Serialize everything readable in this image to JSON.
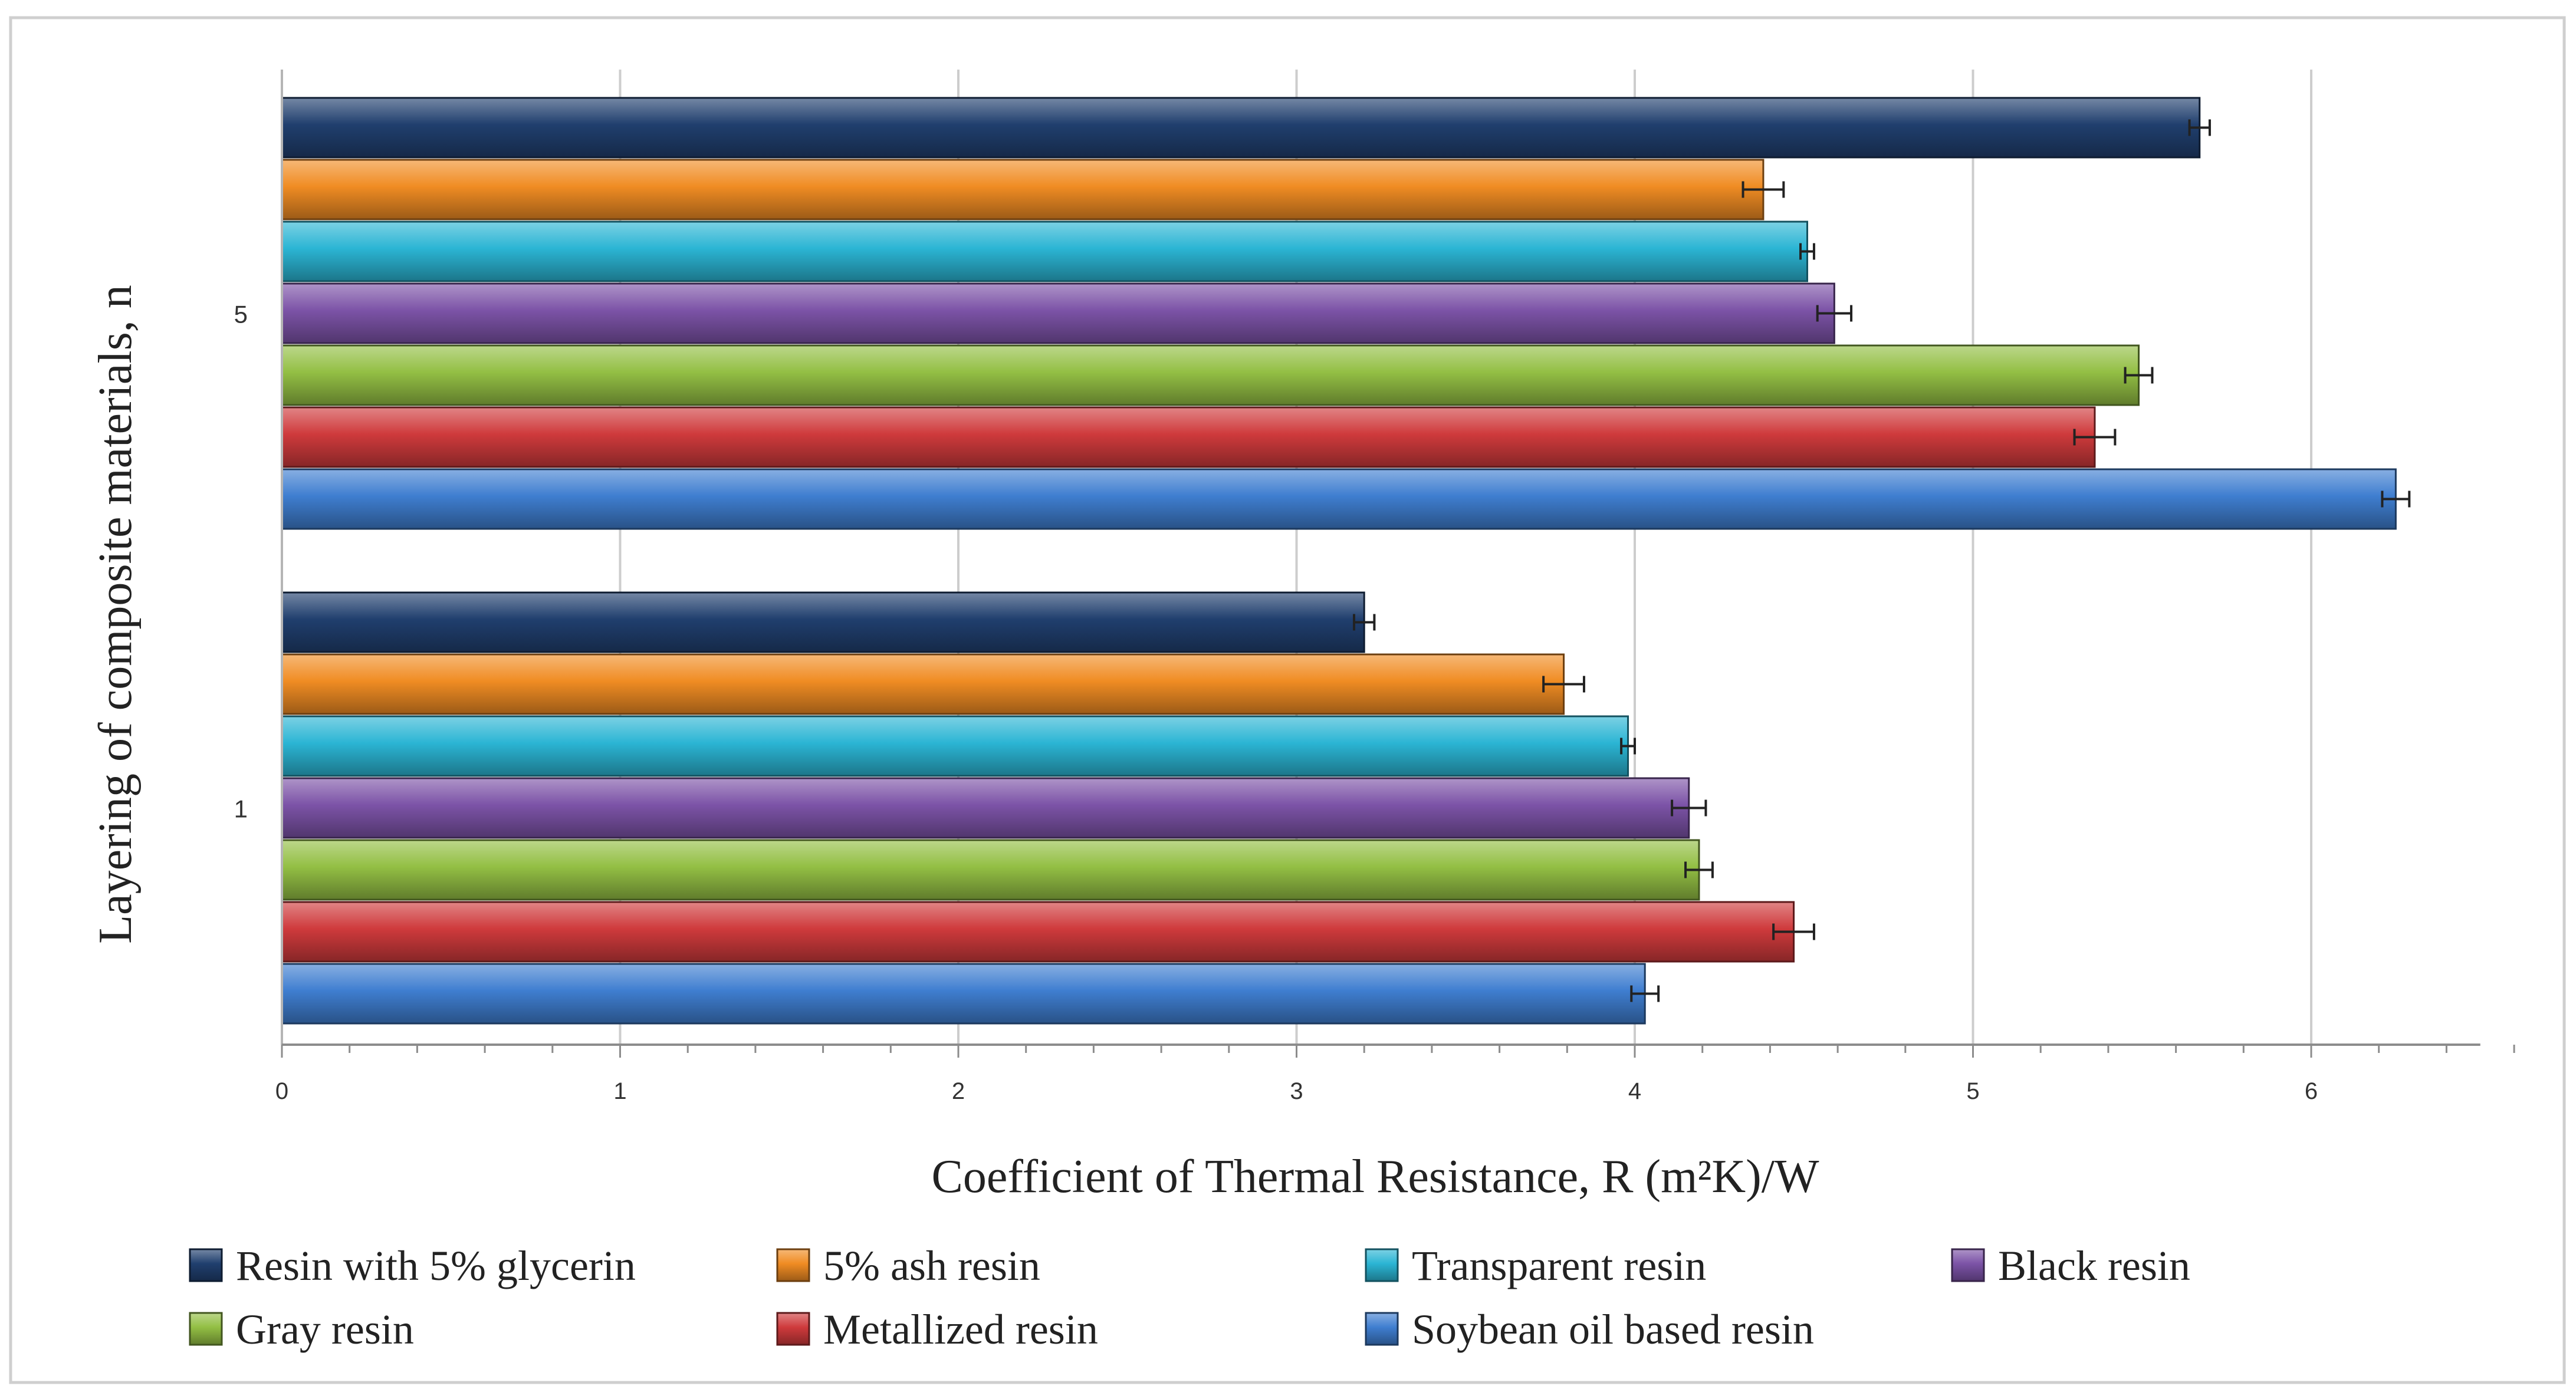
{
  "chart_data": {
    "type": "bar",
    "orientation": "horizontal",
    "categories": [
      "1",
      "5"
    ],
    "series": [
      {
        "name": "Soybean oil based resin",
        "color": "#3f7ed0",
        "values": [
          4.03,
          6.25
        ],
        "errors": [
          0.04,
          0.04
        ]
      },
      {
        "name": "Metallized resin",
        "color": "#cf3a3c",
        "values": [
          4.47,
          5.36
        ],
        "errors": [
          0.06,
          0.06
        ]
      },
      {
        "name": "Gray resin",
        "color": "#93bf44",
        "values": [
          4.19,
          5.49
        ],
        "errors": [
          0.04,
          0.04
        ]
      },
      {
        "name": "Black resin",
        "color": "#7c53a7",
        "values": [
          4.16,
          4.59
        ],
        "errors": [
          0.05,
          0.05
        ]
      },
      {
        "name": "Transparent resin",
        "color": "#2bb5d4",
        "values": [
          3.98,
          4.51
        ],
        "errors": [
          0.02,
          0.02
        ]
      },
      {
        "name": "5% ash resin",
        "color": "#f08c23",
        "values": [
          3.79,
          4.38
        ],
        "errors": [
          0.06,
          0.06
        ]
      },
      {
        "name": "Resin with 5% glycerin",
        "color": "#203f6e",
        "values": [
          3.2,
          5.67
        ],
        "errors": [
          0.03,
          0.03
        ]
      }
    ],
    "xlim": [
      0,
      6.5
    ],
    "x_ticks": [
      "0",
      "1",
      "2",
      "3",
      "4",
      "5",
      "6"
    ],
    "xlabel": "Coefficient of Thermal Resistance, R (m²K)/W",
    "ylabel": "Layering of composite materials, n",
    "legend_order": [
      "Resin with 5% glycerin",
      "5% ash resin",
      "Transparent resin",
      "Black resin",
      "Gray resin",
      "Metallized resin",
      "Soybean oil based resin"
    ],
    "legend_position": "bottom",
    "grid": true
  }
}
